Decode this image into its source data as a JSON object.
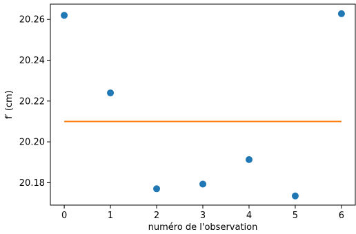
{
  "chart_data": {
    "type": "scatter",
    "title": "",
    "xlabel": "numéro de l'observation",
    "ylabel": "f′ (cm)",
    "xlim": [
      -0.3,
      6.3
    ],
    "ylim": [
      20.169,
      20.2675
    ],
    "xticks": [
      0,
      1,
      2,
      3,
      4,
      5,
      6
    ],
    "xtick_labels": [
      "0",
      "1",
      "2",
      "3",
      "4",
      "5",
      "6"
    ],
    "yticks": [
      20.18,
      20.2,
      20.22,
      20.24,
      20.26
    ],
    "ytick_labels": [
      "20.18",
      "20.20",
      "20.22",
      "20.24",
      "20.26"
    ],
    "grid": false,
    "series": [
      {
        "kind": "scatter",
        "color": "#1f77b4",
        "x": [
          0,
          1,
          2,
          3,
          4,
          5,
          6
        ],
        "y": [
          20.262,
          20.224,
          20.177,
          20.1793,
          20.1913,
          20.1735,
          20.2628
        ]
      },
      {
        "kind": "line",
        "color": "#ff7f0e",
        "x": [
          0,
          6
        ],
        "y": [
          20.21,
          20.21
        ]
      }
    ]
  }
}
